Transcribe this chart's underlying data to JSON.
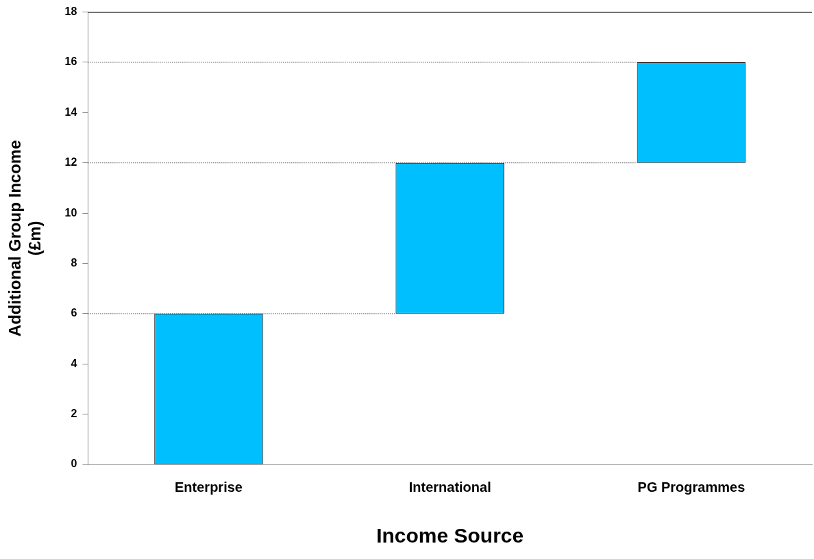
{
  "chart_data": {
    "type": "bar",
    "xlabel": "Income Source",
    "ylabel": "Additional Group Income\n(£m)",
    "categories": [
      "Enterprise",
      "International",
      "PG Programmes"
    ],
    "values": [
      6,
      6,
      4
    ],
    "base": [
      0,
      6,
      12
    ],
    "color": "#00bfff",
    "ylim": [
      0,
      18
    ],
    "yticks": [
      0,
      2,
      4,
      6,
      8,
      10,
      12,
      14,
      16,
      18
    ],
    "grid": false,
    "legend": false,
    "ref_lines": [
      {
        "axis": "y",
        "value": 6,
        "color": "#000000",
        "line_style": "dotted"
      },
      {
        "axis": "y",
        "value": 12,
        "color": "#000000",
        "line_style": "dotted"
      },
      {
        "axis": "y",
        "value": 16,
        "color": "#000000",
        "line_style": "dotted"
      }
    ]
  }
}
